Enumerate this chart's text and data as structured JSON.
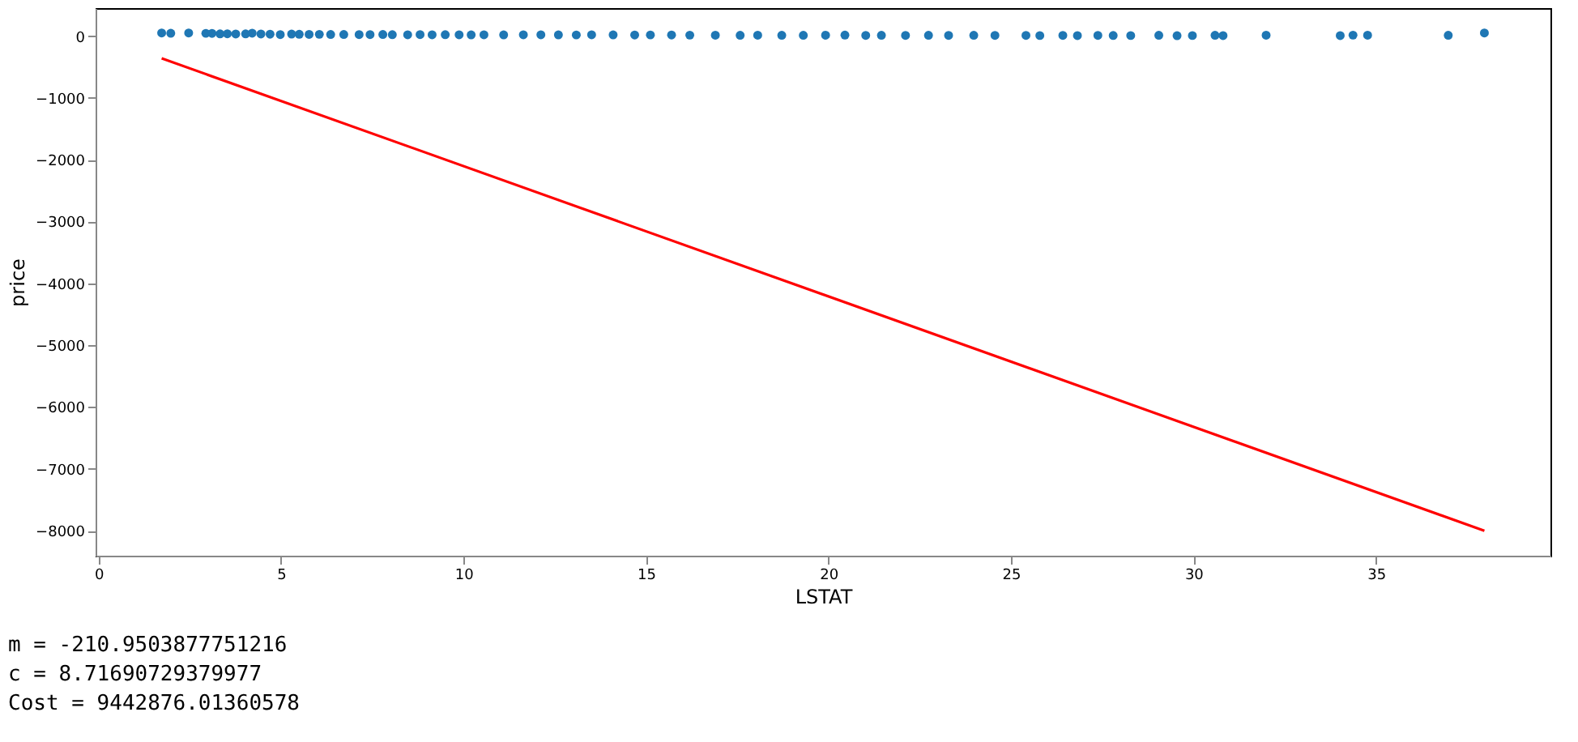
{
  "chart_data": {
    "type": "scatter",
    "xlabel": "LSTAT",
    "ylabel": "price",
    "xlim": [
      -0.08,
      39.78
    ],
    "ylim": [
      -8404,
      452
    ],
    "xticks": [
      0,
      5,
      10,
      15,
      20,
      25,
      30,
      35
    ],
    "yticks": [
      -8000,
      -7000,
      -6000,
      -5000,
      -4000,
      -3000,
      -2000,
      -1000,
      0
    ],
    "grid": false,
    "series": [
      {
        "color": "#1f77b4",
        "marker": "circle",
        "x": [
          1.73,
          1.98,
          2.47,
          2.94,
          3.11,
          3.33,
          3.53,
          3.76,
          4.03,
          4.21,
          4.45,
          4.7,
          4.98,
          5.29,
          5.5,
          5.77,
          6.05,
          6.36,
          6.72,
          7.14,
          7.44,
          7.79,
          8.05,
          8.47,
          8.81,
          9.14,
          9.5,
          9.88,
          10.21,
          10.56,
          11.1,
          11.64,
          12.12,
          12.6,
          13.09,
          13.51,
          14.1,
          14.69,
          15.12,
          15.7,
          16.2,
          16.9,
          17.58,
          18.06,
          18.72,
          19.31,
          19.92,
          20.45,
          21.02,
          21.45,
          22.11,
          22.74,
          23.29,
          23.98,
          24.56,
          25.41,
          25.79,
          26.42,
          26.82,
          27.38,
          27.8,
          28.28,
          29.05,
          29.55,
          29.97,
          30.59,
          30.81,
          31.99,
          34.02,
          34.37,
          34.77,
          36.98,
          37.97
        ],
        "values": [
          50,
          45,
          50,
          44,
          43,
          36,
          37,
          34,
          35,
          46,
          33,
          30,
          24,
          32,
          29,
          27,
          28,
          26,
          25,
          23,
          24,
          25,
          22,
          20,
          23,
          21,
          22,
          20,
          19,
          21,
          19,
          20,
          20,
          19,
          18,
          20,
          19,
          17,
          18,
          17,
          15,
          14,
          13,
          14,
          12,
          13,
          14,
          16,
          11,
          12,
          10,
          12,
          11,
          13,
          11,
          10,
          8,
          11,
          7,
          10,
          9,
          8,
          13,
          6,
          8,
          12,
          7,
          14,
          7,
          15,
          14,
          13,
          50
        ]
      },
      {
        "type": "line",
        "color": "#ff0000",
        "marker": "none",
        "x": [
          1.73,
          37.97
        ],
        "values": [
          -360,
          -8000
        ]
      }
    ],
    "annotations": [
      "m = -210.9503877751216",
      "c = 8.71690729379977",
      "Cost = 9442876.01360578"
    ]
  }
}
